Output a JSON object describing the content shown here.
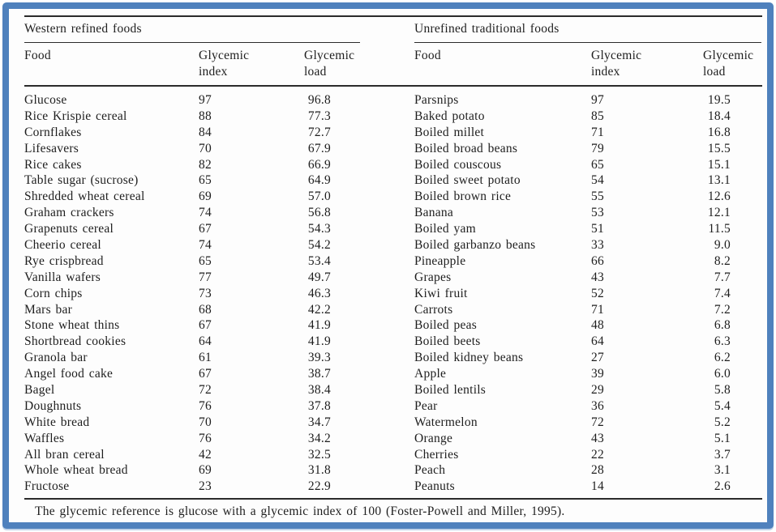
{
  "page": {
    "border_color": "#4f81bd",
    "background": "#ffffff"
  },
  "left_table": {
    "section_title": "Western refined foods",
    "columns": {
      "food": "Food",
      "index_l1": "Glycemic",
      "index_l2": "index",
      "load_l1": "Glycemic",
      "load_l2": "load"
    },
    "rows": [
      {
        "food": "Glucose",
        "gi": "97",
        "load": "96.8"
      },
      {
        "food": "Rice Krispie cereal",
        "gi": "88",
        "load": "77.3"
      },
      {
        "food": "Cornflakes",
        "gi": "84",
        "load": "72.7"
      },
      {
        "food": "Lifesavers",
        "gi": "70",
        "load": "67.9"
      },
      {
        "food": "Rice cakes",
        "gi": "82",
        "load": "66.9"
      },
      {
        "food": "Table sugar (sucrose)",
        "gi": "65",
        "load": "64.9"
      },
      {
        "food": "Shredded wheat cereal",
        "gi": "69",
        "load": "57.0"
      },
      {
        "food": "Graham crackers",
        "gi": "74",
        "load": "56.8"
      },
      {
        "food": "Grapenuts cereal",
        "gi": "67",
        "load": "54.3"
      },
      {
        "food": "Cheerio cereal",
        "gi": "74",
        "load": "54.2"
      },
      {
        "food": "Rye crispbread",
        "gi": "65",
        "load": "53.4"
      },
      {
        "food": "Vanilla wafers",
        "gi": "77",
        "load": "49.7"
      },
      {
        "food": "Corn chips",
        "gi": "73",
        "load": "46.3"
      },
      {
        "food": "Mars bar",
        "gi": "68",
        "load": "42.2"
      },
      {
        "food": "Stone wheat thins",
        "gi": "67",
        "load": "41.9"
      },
      {
        "food": "Shortbread cookies",
        "gi": "64",
        "load": "41.9"
      },
      {
        "food": "Granola bar",
        "gi": "61",
        "load": "39.3"
      },
      {
        "food": "Angel food cake",
        "gi": "67",
        "load": "38.7"
      },
      {
        "food": "Bagel",
        "gi": "72",
        "load": "38.4"
      },
      {
        "food": "Doughnuts",
        "gi": "76",
        "load": "37.8"
      },
      {
        "food": "White bread",
        "gi": "70",
        "load": "34.7"
      },
      {
        "food": "Waffles",
        "gi": "76",
        "load": "34.2"
      },
      {
        "food": "All bran cereal",
        "gi": "42",
        "load": "32.5"
      },
      {
        "food": "Whole wheat bread",
        "gi": "69",
        "load": "31.8"
      },
      {
        "food": "Fructose",
        "gi": "23",
        "load": "22.9"
      }
    ]
  },
  "right_table": {
    "section_title": "Unrefined traditional foods",
    "columns": {
      "food": "Food",
      "index_l1": "Glycemic",
      "index_l2": "index",
      "load_l1": "Glycemic",
      "load_l2": "load"
    },
    "rows": [
      {
        "food": "Parsnips",
        "gi": "97",
        "load": "19.5"
      },
      {
        "food": "Baked potato",
        "gi": "85",
        "load": "18.4"
      },
      {
        "food": "Boiled millet",
        "gi": "71",
        "load": "16.8"
      },
      {
        "food": "Boiled broad beans",
        "gi": "79",
        "load": "15.5"
      },
      {
        "food": "Boiled couscous",
        "gi": "65",
        "load": "15.1"
      },
      {
        "food": "Boiled sweet potato",
        "gi": "54",
        "load": "13.1"
      },
      {
        "food": "Boiled brown rice",
        "gi": "55",
        "load": "12.6"
      },
      {
        "food": "Banana",
        "gi": "53",
        "load": "12.1"
      },
      {
        "food": "Boiled yam",
        "gi": "51",
        "load": "11.5"
      },
      {
        "food": "Boiled garbanzo beans",
        "gi": "33",
        "load": "9.0"
      },
      {
        "food": "Pineapple",
        "gi": "66",
        "load": "8.2"
      },
      {
        "food": "Grapes",
        "gi": "43",
        "load": "7.7"
      },
      {
        "food": "Kiwi fruit",
        "gi": "52",
        "load": "7.4"
      },
      {
        "food": "Carrots",
        "gi": "71",
        "load": "7.2"
      },
      {
        "food": "Boiled peas",
        "gi": "48",
        "load": "6.8"
      },
      {
        "food": "Boiled beets",
        "gi": "64",
        "load": "6.3"
      },
      {
        "food": "Boiled kidney beans",
        "gi": "27",
        "load": "6.2"
      },
      {
        "food": "Apple",
        "gi": "39",
        "load": "6.0"
      },
      {
        "food": "Boiled lentils",
        "gi": "29",
        "load": "5.8"
      },
      {
        "food": "Pear",
        "gi": "36",
        "load": "5.4"
      },
      {
        "food": "Watermelon",
        "gi": "72",
        "load": "5.2"
      },
      {
        "food": "Orange",
        "gi": "43",
        "load": "5.1"
      },
      {
        "food": "Cherries",
        "gi": "22",
        "load": "3.7"
      },
      {
        "food": "Peach",
        "gi": "28",
        "load": "3.1"
      },
      {
        "food": "Peanuts",
        "gi": "14",
        "load": "2.6"
      }
    ]
  },
  "footnote": "The glycemic reference is glucose with a glycemic index of 100 (Foster-Powell and Miller, 1995)."
}
